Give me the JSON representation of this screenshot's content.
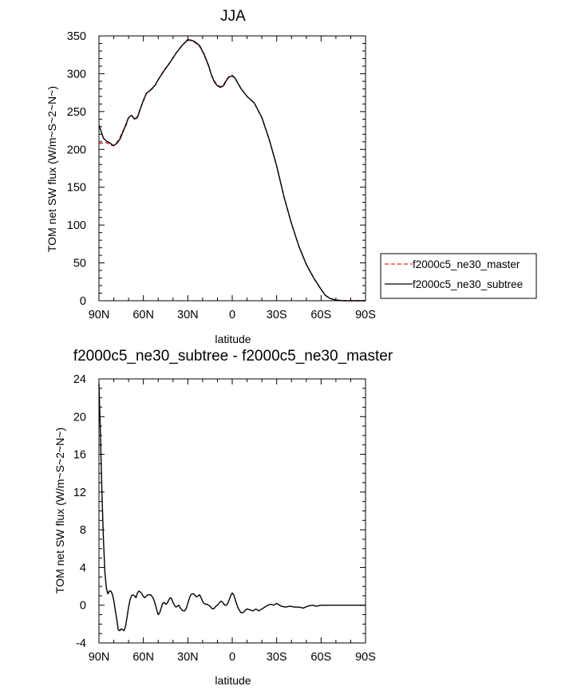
{
  "chart_data": [
    {
      "type": "line",
      "title": "JJA",
      "xlabel": "latitude",
      "ylabel": "TOM net SW flux (W/m~S~2~N~)",
      "x_unit": "degrees latitude (positive = North)",
      "xlim": [
        90,
        -90
      ],
      "ylim": [
        0,
        350
      ],
      "x_ticks": [
        {
          "value": 90,
          "label": "90N"
        },
        {
          "value": 60,
          "label": "60N"
        },
        {
          "value": 30,
          "label": "30N"
        },
        {
          "value": 0,
          "label": "0"
        },
        {
          "value": -30,
          "label": "30S"
        },
        {
          "value": -60,
          "label": "60S"
        },
        {
          "value": -90,
          "label": "90S"
        }
      ],
      "y_ticks": [
        {
          "value": 0,
          "label": "0"
        },
        {
          "value": 50,
          "label": "50"
        },
        {
          "value": 100,
          "label": "100"
        },
        {
          "value": 150,
          "label": "150"
        },
        {
          "value": 200,
          "label": "200"
        },
        {
          "value": 250,
          "label": "250"
        },
        {
          "value": 300,
          "label": "300"
        },
        {
          "value": 350,
          "label": "350"
        }
      ],
      "grid": false,
      "legend_position": "right",
      "x": [
        90,
        87,
        85,
        83,
        81,
        80,
        78,
        76,
        74,
        72,
        70,
        68,
        66,
        64,
        62,
        60,
        58,
        56,
        54,
        52,
        50,
        46,
        42,
        38,
        34,
        32,
        30,
        27,
        25,
        22,
        19,
        16,
        14,
        12,
        10,
        8,
        6,
        4,
        2,
        0,
        -2,
        -4,
        -6,
        -8,
        -10,
        -15,
        -20,
        -25,
        -30,
        -35,
        -40,
        -45,
        -50,
        -55,
        -60,
        -63,
        -66,
        -70,
        -75,
        -80,
        -85,
        -90
      ],
      "series": [
        {
          "name": "f2000c5_ne30_master",
          "color": "#e8262e",
          "dash": "dashed",
          "values": [
            208,
            208,
            209,
            207,
            205,
            205,
            209,
            215,
            224,
            230,
            242,
            245,
            240,
            243,
            255,
            264,
            274,
            277,
            280,
            285,
            292,
            305,
            315,
            327,
            337,
            341,
            345,
            343,
            341,
            336,
            325,
            310,
            298,
            290,
            285,
            283,
            285,
            292,
            297,
            298,
            294,
            287,
            280,
            275,
            270,
            261,
            242,
            213,
            178,
            137,
            102,
            72,
            48,
            30,
            15,
            7,
            3,
            1,
            0,
            0,
            0,
            0
          ]
        },
        {
          "name": "f2000c5_ne30_subtree",
          "color": "#000000",
          "dash": "solid",
          "values": [
            232,
            215,
            211,
            209,
            206,
            205,
            208,
            213,
            222,
            232,
            242,
            245,
            240,
            242,
            254,
            265,
            274,
            277,
            281,
            285,
            292,
            304,
            315,
            327,
            337,
            341,
            345,
            344,
            342,
            337,
            326,
            311,
            298,
            289,
            284,
            282,
            284,
            291,
            296,
            297,
            294,
            287,
            280,
            275,
            270,
            261,
            242,
            213,
            178,
            137,
            102,
            72,
            48,
            30,
            15,
            7,
            3,
            1,
            0,
            0,
            0,
            0
          ]
        }
      ]
    },
    {
      "type": "line",
      "title": "f2000c5_ne30_subtree - f2000c5_ne30_master",
      "xlabel": "latitude",
      "ylabel": "TOM net SW flux (W/m~S~2~N~)",
      "x_unit": "degrees latitude (positive = North)",
      "xlim": [
        90,
        -90
      ],
      "ylim": [
        -4,
        24
      ],
      "x_ticks": [
        {
          "value": 90,
          "label": "90N"
        },
        {
          "value": 60,
          "label": "60N"
        },
        {
          "value": 30,
          "label": "30N"
        },
        {
          "value": 0,
          "label": "0"
        },
        {
          "value": -30,
          "label": "30S"
        },
        {
          "value": -60,
          "label": "60S"
        },
        {
          "value": -90,
          "label": "90S"
        }
      ],
      "y_ticks": [
        {
          "value": -4,
          "label": "-4"
        },
        {
          "value": 0,
          "label": "0"
        },
        {
          "value": 4,
          "label": "4"
        },
        {
          "value": 8,
          "label": "8"
        },
        {
          "value": 12,
          "label": "12"
        },
        {
          "value": 16,
          "label": "16"
        },
        {
          "value": 20,
          "label": "20"
        },
        {
          "value": 24,
          "label": "24"
        }
      ],
      "grid": false,
      "x": [
        90,
        89,
        88,
        87,
        86,
        85,
        84,
        83,
        82,
        81,
        80,
        79,
        78,
        77,
        76,
        75,
        74,
        73,
        72,
        71,
        70,
        69,
        68,
        67,
        66,
        65,
        64,
        63,
        62,
        61,
        60,
        59,
        58,
        57,
        56,
        55,
        54,
        53,
        52,
        51,
        50,
        49,
        48,
        47,
        46,
        45,
        44,
        43,
        42,
        41,
        40,
        39,
        38,
        37,
        36,
        35,
        34,
        33,
        32,
        31,
        30,
        29,
        28,
        27,
        26,
        25,
        24,
        23,
        22,
        21,
        20,
        19,
        18,
        17,
        16,
        15,
        14,
        13,
        12,
        11,
        10,
        9,
        8,
        7,
        6,
        5,
        4,
        3,
        2,
        1,
        0,
        -1,
        -2,
        -3,
        -4,
        -5,
        -6,
        -7,
        -8,
        -9,
        -10,
        -12,
        -14,
        -16,
        -18,
        -20,
        -22,
        -24,
        -26,
        -28,
        -30,
        -33,
        -36,
        -39,
        -42,
        -45,
        -48,
        -51,
        -54,
        -57,
        -60,
        -63,
        -66,
        -69,
        -72,
        -75,
        -80,
        -85,
        -90
      ],
      "series": [
        {
          "name": "f2000c5_ne30_subtree - f2000c5_ne30_master",
          "color": "#000000",
          "dash": "solid",
          "values": [
            23.5,
            18,
            12,
            7,
            3.5,
            1.8,
            1.2,
            1.5,
            1.5,
            1.2,
            0.5,
            -0.5,
            -1.5,
            -2.6,
            -2.7,
            -2.5,
            -2.6,
            -2.7,
            -2.2,
            -1.2,
            -0.2,
            0.6,
            1.0,
            1.1,
            1.0,
            0.8,
            1.3,
            1.5,
            1.4,
            1.2,
            0.9,
            0.8,
            1.0,
            1.1,
            1.1,
            1.1,
            0.9,
            0.6,
            0.1,
            -0.5,
            -1.0,
            -0.8,
            -0.3,
            0.2,
            0.3,
            0.1,
            0.2,
            0.5,
            0.8,
            0.7,
            0.3,
            0.0,
            -0.2,
            -0.1,
            0.0,
            -0.3,
            -0.5,
            -0.6,
            -0.6,
            -0.3,
            0.2,
            0.7,
            1.1,
            1.2,
            1.2,
            1.0,
            0.9,
            1.0,
            1.1,
            0.8,
            0.4,
            0.2,
            0.1,
            0.1,
            0.0,
            -0.1,
            -0.3,
            -0.4,
            -0.3,
            -0.1,
            0.0,
            0.2,
            0.4,
            0.4,
            0.2,
            0.0,
            0.0,
            0.2,
            0.6,
            1.0,
            1.3,
            1.1,
            0.6,
            0.1,
            -0.3,
            -0.6,
            -0.8,
            -0.8,
            -0.7,
            -0.5,
            -0.4,
            -0.5,
            -0.6,
            -0.4,
            -0.6,
            -0.4,
            -0.2,
            0.0,
            0.1,
            0.0,
            0.2,
            -0.1,
            -0.2,
            -0.1,
            -0.2,
            -0.2,
            -0.3,
            -0.1,
            0.0,
            -0.1,
            0.0,
            0.0,
            0.0,
            0.0,
            0.0,
            0.0,
            0.0,
            0.0,
            0.0
          ]
        }
      ]
    }
  ]
}
